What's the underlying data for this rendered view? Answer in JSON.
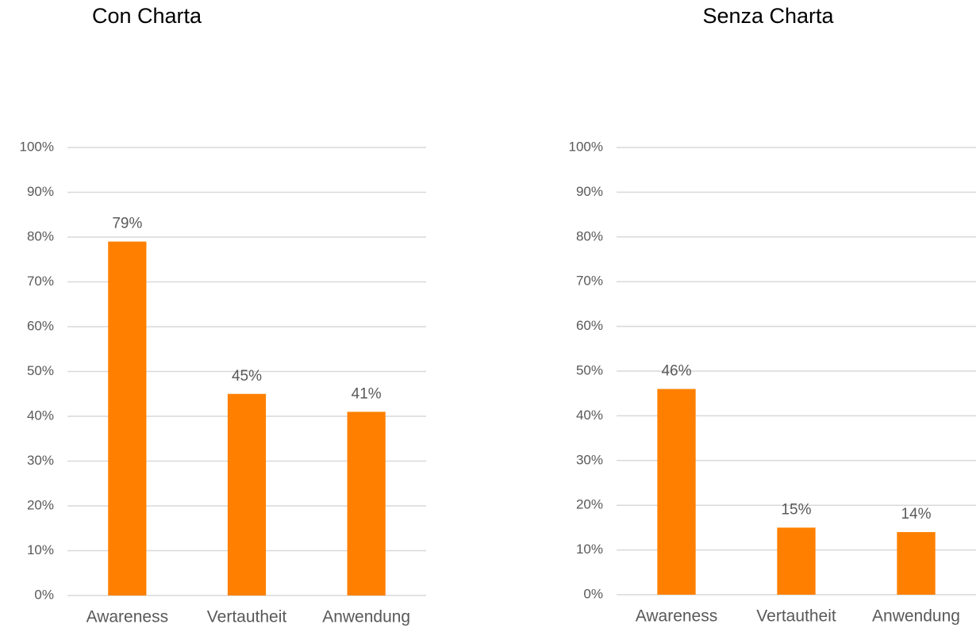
{
  "chart_data": [
    {
      "type": "bar",
      "title": "Con Charta",
      "categories": [
        "Awareness",
        "Vertautheit",
        "Anwendung"
      ],
      "values": [
        79,
        45,
        41
      ],
      "value_labels": [
        "79%",
        "45%",
        "41%"
      ],
      "color": "#ff8000",
      "ylim": [
        0,
        100
      ],
      "yticks": [
        {
          "value": 0,
          "label": "0%"
        },
        {
          "value": 10,
          "label": "10%"
        },
        {
          "value": 20,
          "label": "20%"
        },
        {
          "value": 30,
          "label": "30%"
        },
        {
          "value": 40,
          "label": "40%"
        },
        {
          "value": 50,
          "label": "50%"
        },
        {
          "value": 60,
          "label": "60%"
        },
        {
          "value": 70,
          "label": "70%"
        },
        {
          "value": 80,
          "label": "80%"
        },
        {
          "value": 90,
          "label": "90%"
        },
        {
          "value": 100,
          "label": "100%"
        }
      ],
      "grid": true
    },
    {
      "type": "bar",
      "title": "Senza Charta",
      "categories": [
        "Awareness",
        "Vertautheit",
        "Anwendung"
      ],
      "values": [
        46,
        15,
        14
      ],
      "value_labels": [
        "46%",
        "15%",
        "14%"
      ],
      "color": "#ff8000",
      "ylim": [
        0,
        100
      ],
      "yticks": [
        {
          "value": 0,
          "label": "0%"
        },
        {
          "value": 10,
          "label": "10%"
        },
        {
          "value": 20,
          "label": "20%"
        },
        {
          "value": 30,
          "label": "30%"
        },
        {
          "value": 40,
          "label": "40%"
        },
        {
          "value": 50,
          "label": "50%"
        },
        {
          "value": 60,
          "label": "60%"
        },
        {
          "value": 70,
          "label": "70%"
        },
        {
          "value": 80,
          "label": "80%"
        },
        {
          "value": 90,
          "label": "90%"
        },
        {
          "value": 100,
          "label": "100%"
        }
      ],
      "grid": true
    }
  ]
}
